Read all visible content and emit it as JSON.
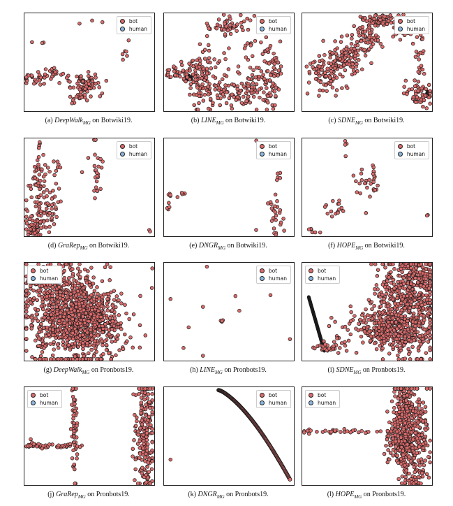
{
  "colors": {
    "bot": "#d96b6b",
    "human": "#8ab4dd",
    "edge": "#1a1a1a"
  },
  "legend": {
    "bot": "bot",
    "human": "human"
  },
  "figures": [
    {
      "id": "a",
      "caption": {
        "label": "(a)",
        "method": "DeepWalk",
        "sub": "MG",
        "rest": "on Botwiki19."
      }
    },
    {
      "id": "b",
      "caption": {
        "label": "(b)",
        "method": "LINE",
        "sub": "MG",
        "rest": "on Botwiki19."
      }
    },
    {
      "id": "c",
      "caption": {
        "label": "(c)",
        "method": "SDNE",
        "sub": "MG",
        "rest": "on Botwiki19."
      }
    },
    {
      "id": "d",
      "caption": {
        "label": "(d)",
        "method": "GraRep",
        "sub": "MG",
        "rest": "on Botwiki19."
      }
    },
    {
      "id": "e",
      "caption": {
        "label": "(e)",
        "method": "DNGR",
        "sub": "MG",
        "rest": "on Botwiki19."
      }
    },
    {
      "id": "f",
      "caption": {
        "label": "(f)",
        "method": "HOPE",
        "sub": "MG",
        "rest": "on Botwiki19."
      }
    },
    {
      "id": "g",
      "caption": {
        "label": "(g)",
        "method": "DeepWalk",
        "sub": "MG",
        "rest": "on Pronbots19."
      }
    },
    {
      "id": "h",
      "caption": {
        "label": "(h)",
        "method": "LINE",
        "sub": "MG",
        "rest": "on Pronbots19."
      }
    },
    {
      "id": "i",
      "caption": {
        "label": "(i)",
        "method": "SDNE",
        "sub": "MG",
        "rest": "on Pronbots19."
      }
    },
    {
      "id": "j",
      "caption": {
        "label": "(j)",
        "method": "GraRep",
        "sub": "MG",
        "rest": "on Pronbots19."
      }
    },
    {
      "id": "k",
      "caption": {
        "label": "(k)",
        "method": "DNGR",
        "sub": "MG",
        "rest": "on Pronbots19."
      }
    },
    {
      "id": "l",
      "caption": {
        "label": "(l)",
        "method": "HOPE",
        "sub": "MG",
        "rest": "on Pronbots19."
      }
    }
  ],
  "chart_data": [
    {
      "panel": "a",
      "type": "scatter",
      "series": [
        {
          "name": "bot",
          "clusters": [
            [
              0.55,
              0.92,
              0.07,
              0.03,
              3
            ],
            [
              0.1,
              0.71,
              0.03,
              0.02,
              3
            ],
            [
              0.78,
              0.63,
              0.02,
              0.06,
              5
            ],
            [
              0.75,
              0.52,
              0.01,
              0.01,
              1
            ],
            [
              0.09,
              0.32,
              0.06,
              0.03,
              30
            ],
            [
              0.22,
              0.37,
              0.05,
              0.03,
              25
            ],
            [
              0.47,
              0.28,
              0.06,
              0.05,
              70
            ],
            [
              0.42,
              0.16,
              0.03,
              0.04,
              20
            ],
            [
              0.37,
              0.08,
              0.01,
              0.01,
              2
            ]
          ]
        },
        {
          "name": "human",
          "clusters": []
        }
      ]
    },
    {
      "panel": "b",
      "type": "scatter",
      "series": [
        {
          "name": "bot",
          "clusters": [
            [
              0.48,
              0.88,
              0.09,
              0.06,
              50
            ],
            [
              0.28,
              0.33,
              0.06,
              0.12,
              80
            ],
            [
              0.55,
              0.2,
              0.12,
              0.08,
              90
            ],
            [
              0.15,
              0.4,
              0.08,
              0.05,
              40
            ],
            [
              0.72,
              0.35,
              0.09,
              0.15,
              60
            ],
            [
              0.85,
              0.36,
              0.05,
              0.15,
              40
            ],
            [
              0.42,
              0.55,
              0.1,
              0.1,
              15
            ],
            [
              0.7,
              0.65,
              0.08,
              0.05,
              10
            ],
            [
              0.05,
              0.35,
              0.01,
              0.01,
              2
            ]
          ]
        },
        {
          "name": "human",
          "clusters": []
        }
      ]
    },
    {
      "panel": "c",
      "type": "scatter",
      "series": [
        {
          "name": "bot",
          "clusters": [
            [
              0.2,
              0.4,
              0.08,
              0.12,
              100
            ],
            [
              0.35,
              0.55,
              0.08,
              0.08,
              80
            ],
            [
              0.48,
              0.75,
              0.06,
              0.08,
              60
            ],
            [
              0.62,
              0.93,
              0.08,
              0.03,
              60
            ],
            [
              0.78,
              0.85,
              0.05,
              0.06,
              40
            ],
            [
              0.9,
              0.55,
              0.02,
              0.15,
              30
            ],
            [
              0.92,
              0.15,
              0.05,
              0.06,
              40
            ],
            [
              0.8,
              0.22,
              0.02,
              0.04,
              6
            ]
          ]
        },
        {
          "name": "human",
          "clusters": []
        }
      ]
    },
    {
      "panel": "d",
      "type": "scatter",
      "series": [
        {
          "name": "bot",
          "clusters": [
            [
              0.12,
              0.95,
              0.01,
              0.03,
              5
            ],
            [
              0.1,
              0.6,
              0.03,
              0.1,
              30
            ],
            [
              0.15,
              0.3,
              0.06,
              0.12,
              80
            ],
            [
              0.07,
              0.08,
              0.03,
              0.04,
              50
            ],
            [
              0.22,
              0.69,
              0.05,
              0.04,
              12
            ],
            [
              0.55,
              0.6,
              0.02,
              0.15,
              25
            ],
            [
              0.45,
              0.66,
              0.01,
              0.01,
              1
            ],
            [
              0.96,
              0.05,
              0.01,
              0.01,
              2
            ]
          ]
        },
        {
          "name": "human",
          "clusters": []
        }
      ]
    },
    {
      "panel": "e",
      "type": "scatter",
      "series": [
        {
          "name": "bot",
          "clusters": [
            [
              0.7,
              0.97,
              0.01,
              0.01,
              1
            ],
            [
              0.04,
              0.44,
              0.01,
              0.02,
              4
            ],
            [
              0.04,
              0.3,
              0.01,
              0.02,
              4
            ],
            [
              0.12,
              0.42,
              0.02,
              0.02,
              5
            ],
            [
              0.88,
              0.6,
              0.01,
              0.04,
              5
            ],
            [
              0.85,
              0.2,
              0.03,
              0.12,
              25
            ],
            [
              0.72,
              0.05,
              0.01,
              0.01,
              1
            ]
          ]
        },
        {
          "name": "human",
          "clusters": []
        }
      ]
    },
    {
      "panel": "f",
      "type": "scatter",
      "series": [
        {
          "name": "bot",
          "clusters": [
            [
              0.33,
              0.95,
              0.01,
              0.02,
              3
            ],
            [
              0.34,
              0.83,
              0.01,
              0.01,
              1
            ],
            [
              0.47,
              0.55,
              0.05,
              0.08,
              20
            ],
            [
              0.56,
              0.57,
              0.01,
              0.06,
              10
            ],
            [
              0.25,
              0.28,
              0.06,
              0.05,
              15
            ],
            [
              0.07,
              0.05,
              0.03,
              0.02,
              6
            ],
            [
              0.48,
              0.25,
              0.01,
              0.01,
              1
            ],
            [
              0.96,
              0.22,
              0.01,
              0.01,
              2
            ]
          ]
        },
        {
          "name": "human",
          "clusters": []
        }
      ]
    },
    {
      "panel": "g",
      "type": "scatter",
      "series": [
        {
          "name": "bot",
          "clusters": [
            [
              0.3,
              0.5,
              0.15,
              0.25,
              600
            ],
            [
              0.5,
              0.4,
              0.13,
              0.2,
              500
            ],
            [
              0.25,
              0.75,
              0.08,
              0.05,
              30
            ],
            [
              0.98,
              0.95,
              0.01,
              0.01,
              1
            ],
            [
              0.99,
              0.75,
              0.01,
              0.01,
              1
            ]
          ]
        },
        {
          "name": "human",
          "clusters": []
        }
      ]
    },
    {
      "panel": "h",
      "type": "scatter",
      "series": [
        {
          "name": "bot",
          "clusters": [
            [
              0.33,
              0.96,
              0.0,
              0.0,
              1
            ],
            [
              0.05,
              0.63,
              0.0,
              0.0,
              1
            ],
            [
              0.3,
              0.55,
              0.0,
              0.0,
              1
            ],
            [
              0.55,
              0.66,
              0.0,
              0.0,
              1
            ],
            [
              0.58,
              0.51,
              0.0,
              0.0,
              1
            ],
            [
              0.82,
              0.67,
              0.0,
              0.0,
              1
            ],
            [
              0.44,
              0.4,
              0.01,
              0.01,
              4
            ],
            [
              0.19,
              0.34,
              0.0,
              0.0,
              1
            ],
            [
              0.97,
              0.22,
              0.0,
              0.0,
              1
            ],
            [
              0.15,
              0.13,
              0.0,
              0.0,
              1
            ],
            [
              0.3,
              0.05,
              0.0,
              0.0,
              1
            ]
          ]
        },
        {
          "name": "human",
          "clusters": []
        }
      ]
    },
    {
      "panel": "i",
      "type": "scatter",
      "series": [
        {
          "name": "bot",
          "clusters": [
            [
              0.8,
              0.6,
              0.12,
              0.25,
              500
            ],
            [
              0.65,
              0.3,
              0.15,
              0.1,
              300
            ],
            [
              0.9,
              0.85,
              0.06,
              0.1,
              100
            ],
            [
              0.2,
              0.13,
              0.06,
              0.03,
              30
            ]
          ]
        },
        {
          "name": "human",
          "clusters": []
        }
      ]
    },
    {
      "panel": "j",
      "type": "scatter",
      "series": [
        {
          "name": "bot",
          "clusters": [
            [
              0.38,
              0.65,
              0.01,
              0.3,
              60
            ],
            [
              0.2,
              0.4,
              0.12,
              0.01,
              40
            ],
            [
              0.05,
              0.42,
              0.02,
              0.02,
              8
            ],
            [
              0.93,
              0.5,
              0.04,
              0.3,
              200
            ]
          ]
        },
        {
          "name": "human",
          "clusters": []
        }
      ]
    },
    {
      "panel": "k",
      "type": "scatter",
      "series": [
        {
          "name": "bot",
          "clusters": [
            [
              0.6,
              0.45,
              0.05,
              0.05,
              0
            ],
            [
              0.05,
              0.26,
              0.0,
              0.0,
              1
            ]
          ]
        },
        {
          "name": "human",
          "clusters": []
        }
      ]
    },
    {
      "panel": "l",
      "type": "scatter",
      "series": [
        {
          "name": "bot",
          "clusters": [
            [
              0.78,
              0.65,
              0.04,
              0.25,
              250
            ],
            [
              0.87,
              0.45,
              0.05,
              0.3,
              250
            ],
            [
              0.72,
              0.45,
              0.04,
              0.1,
              80
            ],
            [
              0.35,
              0.55,
              0.18,
              0.01,
              30
            ],
            [
              0.05,
              0.55,
              0.02,
              0.01,
              3
            ]
          ]
        },
        {
          "name": "human",
          "clusters": []
        }
      ]
    }
  ]
}
